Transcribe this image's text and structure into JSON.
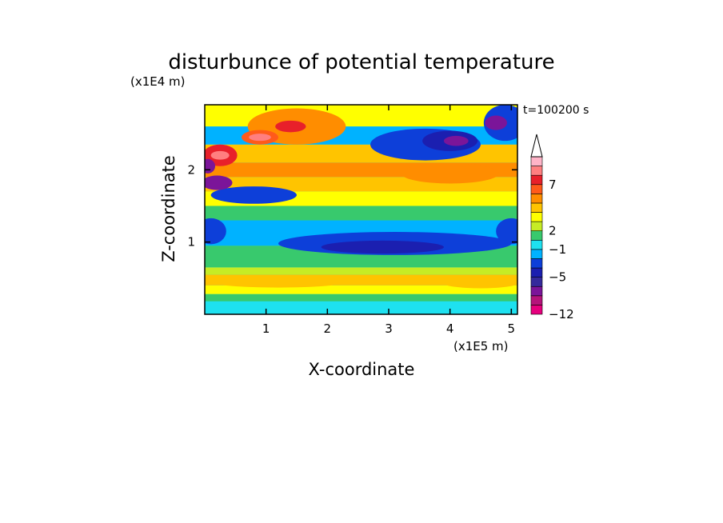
{
  "chart_data": {
    "type": "heatmap",
    "title": "disturbunce of potential temperature",
    "xlabel": "X-coordinate",
    "ylabel": "Z-coordinate",
    "x_unit": "(x1E5 m)",
    "y_unit": "(x1E4 m)",
    "time_label": "t=100200 s",
    "xlim": [
      0,
      5.1
    ],
    "ylim": [
      0,
      2.9
    ],
    "x_ticks": [
      "1",
      "2",
      "3",
      "4",
      "5"
    ],
    "y_ticks": [
      "1",
      "2"
    ],
    "colorbar": {
      "tick_labels": [
        "7",
        "2",
        "−1",
        "−5",
        "−12"
      ],
      "colors": [
        "#e6007e",
        "#b5147b",
        "#7b1599",
        "#352a9c",
        "#1b1fb0",
        "#0d3fd9",
        "#00b2ff",
        "#1ee1f0",
        "#38c96d",
        "#c6ec25",
        "#ffff00",
        "#ffc400",
        "#ff8d00",
        "#ff5a1a",
        "#e8202a",
        "#ff7f80",
        "#ffb4c8"
      ],
      "extend_max": true
    },
    "bands": [
      {
        "z": [
          0.0,
          0.18
        ],
        "color": "#1ee1f0"
      },
      {
        "z": [
          0.18,
          0.28
        ],
        "color": "#38c96d"
      },
      {
        "z": [
          0.28,
          0.4
        ],
        "color": "#ffff00"
      },
      {
        "z": [
          0.4,
          0.55
        ],
        "color": "#ffc400"
      },
      {
        "z": [
          0.55,
          0.65
        ],
        "color": "#c6ec25"
      },
      {
        "z": [
          0.65,
          0.95
        ],
        "color": "#38c96d"
      },
      {
        "z": [
          0.95,
          1.3
        ],
        "color": "#00b2ff"
      },
      {
        "z": [
          1.3,
          1.5
        ],
        "color": "#38c96d"
      },
      {
        "z": [
          1.5,
          1.7
        ],
        "color": "#ffff00"
      },
      {
        "z": [
          1.7,
          1.9
        ],
        "color": "#ffc400"
      },
      {
        "z": [
          1.9,
          2.1
        ],
        "color": "#ff8d00"
      },
      {
        "z": [
          2.1,
          2.35
        ],
        "color": "#ffc400"
      },
      {
        "z": [
          2.35,
          2.6
        ],
        "color": "#00b2ff"
      },
      {
        "z": [
          2.6,
          2.9
        ],
        "color": "#ffff00"
      }
    ],
    "blobs": [
      {
        "cx": 3.1,
        "cz": 0.98,
        "rx": 1.9,
        "rz": 0.16,
        "color": "#0d3fd9"
      },
      {
        "cx": 2.9,
        "cz": 0.93,
        "rx": 1.0,
        "rz": 0.09,
        "color": "#1b1fb0"
      },
      {
        "cx": 0.1,
        "cz": 1.15,
        "rx": 0.25,
        "rz": 0.18,
        "color": "#0d3fd9"
      },
      {
        "cx": 5.0,
        "cz": 1.15,
        "rx": 0.25,
        "rz": 0.18,
        "color": "#0d3fd9"
      },
      {
        "cx": 0.8,
        "cz": 1.65,
        "rx": 0.7,
        "rz": 0.12,
        "color": "#0d3fd9"
      },
      {
        "cx": 0.2,
        "cz": 1.82,
        "rx": 0.25,
        "rz": 0.1,
        "color": "#7b1599"
      },
      {
        "cx": 3.6,
        "cz": 2.35,
        "rx": 0.9,
        "rz": 0.22,
        "color": "#0d3fd9"
      },
      {
        "cx": 4.0,
        "cz": 2.4,
        "rx": 0.45,
        "rz": 0.14,
        "color": "#1b1fb0"
      },
      {
        "cx": 4.1,
        "cz": 2.4,
        "rx": 0.2,
        "rz": 0.07,
        "color": "#7b1599"
      },
      {
        "cx": 4.9,
        "cz": 2.65,
        "rx": 0.35,
        "rz": 0.25,
        "color": "#0d3fd9"
      },
      {
        "cx": 4.75,
        "cz": 2.65,
        "rx": 0.18,
        "rz": 0.1,
        "color": "#7b1599"
      },
      {
        "cx": 4.0,
        "cz": 1.95,
        "rx": 0.8,
        "rz": 0.14,
        "color": "#ff8d00"
      },
      {
        "cx": 1.5,
        "cz": 2.6,
        "rx": 0.8,
        "rz": 0.25,
        "color": "#ff8d00"
      },
      {
        "cx": 1.4,
        "cz": 2.6,
        "rx": 0.25,
        "rz": 0.08,
        "color": "#e8202a"
      },
      {
        "cx": 0.9,
        "cz": 2.45,
        "rx": 0.3,
        "rz": 0.1,
        "color": "#ff5a1a"
      },
      {
        "cx": 0.9,
        "cz": 2.45,
        "rx": 0.18,
        "rz": 0.05,
        "color": "#ff7f80"
      },
      {
        "cx": 0.25,
        "cz": 2.2,
        "rx": 0.28,
        "rz": 0.15,
        "color": "#e8202a"
      },
      {
        "cx": 0.25,
        "cz": 2.2,
        "rx": 0.15,
        "rz": 0.06,
        "color": "#ff7f80"
      },
      {
        "cx": 0.05,
        "cz": 2.05,
        "rx": 0.12,
        "rz": 0.1,
        "color": "#7b1599"
      },
      {
        "cx": 1.2,
        "cz": 0.45,
        "rx": 1.1,
        "rz": 0.08,
        "color": "#ffc400"
      },
      {
        "cx": 4.5,
        "cz": 0.43,
        "rx": 0.6,
        "rz": 0.07,
        "color": "#ffc400"
      }
    ]
  }
}
